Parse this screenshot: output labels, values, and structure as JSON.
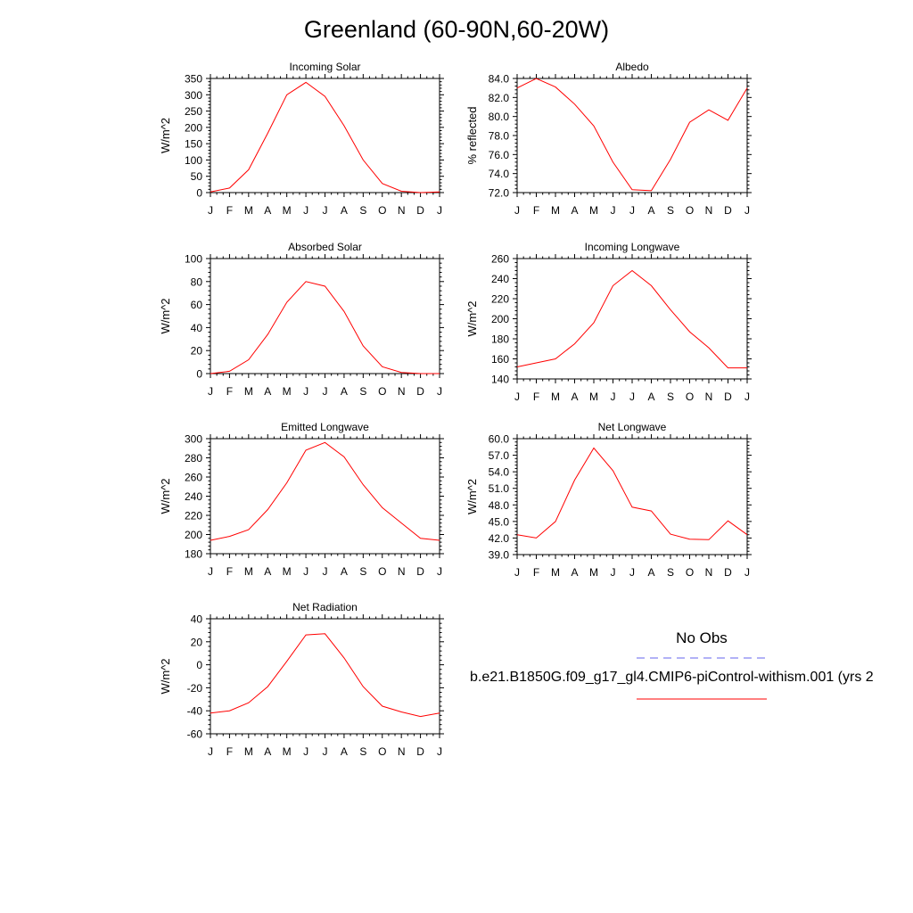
{
  "title": "Greenland (60-90N,60-20W)",
  "colors": {
    "model_line": "#ff0000",
    "obs_line": "#6666ee",
    "axis": "#000000"
  },
  "months": [
    "J",
    "F",
    "M",
    "A",
    "M",
    "J",
    "J",
    "A",
    "S",
    "O",
    "N",
    "D",
    "J"
  ],
  "legend": {
    "obs_label": "No Obs",
    "model_label": "b.e21.B1850G.f09_g17_gl4.CMIP6-piControl-withism.001 (yrs 2"
  },
  "chart_data": [
    {
      "type": "line",
      "title": "Incoming Solar",
      "ylabel": "W/m^2",
      "categories": [
        "J",
        "F",
        "M",
        "A",
        "M",
        "J",
        "J",
        "A",
        "S",
        "O",
        "N",
        "D",
        "J"
      ],
      "ylim": [
        0,
        350
      ],
      "yticks": [
        0,
        50,
        100,
        150,
        200,
        250,
        300,
        350
      ],
      "ytick_labels": [
        "0",
        "50",
        "100",
        "150",
        "200",
        "250",
        "300",
        "350"
      ],
      "series": [
        {
          "values": [
            2,
            14,
            70,
            182,
            300,
            338,
            295,
            205,
            100,
            28,
            4,
            0,
            2
          ]
        }
      ]
    },
    {
      "type": "line",
      "title": "Albedo",
      "ylabel": "% reflected",
      "categories": [
        "J",
        "F",
        "M",
        "A",
        "M",
        "J",
        "J",
        "A",
        "S",
        "O",
        "N",
        "D",
        "J"
      ],
      "ylim": [
        72,
        84
      ],
      "yticks": [
        72,
        74,
        76,
        78,
        80,
        82,
        84
      ],
      "ytick_labels": [
        "72.0",
        "74.0",
        "76.0",
        "78.0",
        "80.0",
        "82.0",
        "84.0"
      ],
      "series": [
        {
          "values": [
            83.0,
            84.0,
            83.1,
            81.3,
            79.0,
            75.2,
            72.3,
            72.2,
            75.5,
            79.4,
            80.7,
            79.6,
            83.0
          ]
        }
      ]
    },
    {
      "type": "line",
      "title": "Absorbed Solar",
      "ylabel": "W/m^2",
      "categories": [
        "J",
        "F",
        "M",
        "A",
        "M",
        "J",
        "J",
        "A",
        "S",
        "O",
        "N",
        "D",
        "J"
      ],
      "ylim": [
        0,
        100
      ],
      "yticks": [
        0,
        20,
        40,
        60,
        80,
        100
      ],
      "ytick_labels": [
        "0",
        "20",
        "40",
        "60",
        "80",
        "100"
      ],
      "series": [
        {
          "values": [
            0,
            2,
            12,
            34,
            62,
            80,
            76,
            54,
            24,
            6,
            1,
            0,
            0
          ]
        }
      ]
    },
    {
      "type": "line",
      "title": "Incoming Longwave",
      "ylabel": "W/m^2",
      "categories": [
        "J",
        "F",
        "M",
        "A",
        "M",
        "J",
        "J",
        "A",
        "S",
        "O",
        "N",
        "D",
        "J"
      ],
      "ylim": [
        140,
        260
      ],
      "yticks": [
        140,
        160,
        180,
        200,
        220,
        240,
        260
      ],
      "ytick_labels": [
        "140",
        "160",
        "180",
        "200",
        "220",
        "240",
        "260"
      ],
      "series": [
        {
          "values": [
            152,
            156,
            160,
            175,
            196,
            233,
            248,
            233,
            209,
            187,
            171,
            151,
            151
          ]
        }
      ]
    },
    {
      "type": "line",
      "title": "Emitted Longwave",
      "ylabel": "W/m^2",
      "categories": [
        "J",
        "F",
        "M",
        "A",
        "M",
        "J",
        "J",
        "A",
        "S",
        "O",
        "N",
        "D",
        "J"
      ],
      "ylim": [
        180,
        300
      ],
      "yticks": [
        180,
        200,
        220,
        240,
        260,
        280,
        300
      ],
      "ytick_labels": [
        "180",
        "200",
        "220",
        "240",
        "260",
        "280",
        "300"
      ],
      "series": [
        {
          "values": [
            194,
            198,
            205,
            226,
            254,
            288,
            296,
            281,
            252,
            228,
            212,
            196,
            194
          ]
        }
      ]
    },
    {
      "type": "line",
      "title": "Net Longwave",
      "ylabel": "W/m^2",
      "categories": [
        "J",
        "F",
        "M",
        "A",
        "M",
        "J",
        "J",
        "A",
        "S",
        "O",
        "N",
        "D",
        "J"
      ],
      "ylim": [
        39,
        60
      ],
      "yticks": [
        39,
        42,
        45,
        48,
        51,
        54,
        57,
        60
      ],
      "ytick_labels": [
        "39.0",
        "42.0",
        "45.0",
        "48.0",
        "51.0",
        "54.0",
        "57.0",
        "60.0"
      ],
      "series": [
        {
          "values": [
            42.6,
            42.0,
            45.0,
            52.5,
            58.3,
            54.2,
            47.6,
            46.9,
            42.7,
            41.8,
            41.7,
            45.1,
            42.6
          ]
        }
      ]
    },
    {
      "type": "line",
      "title": "Net Radiation",
      "ylabel": "W/m^2",
      "categories": [
        "J",
        "F",
        "M",
        "A",
        "M",
        "J",
        "J",
        "A",
        "S",
        "O",
        "N",
        "D",
        "J"
      ],
      "ylim": [
        -60,
        40
      ],
      "yticks": [
        -60,
        -40,
        -20,
        0,
        20,
        40
      ],
      "ytick_labels": [
        "-60",
        "-40",
        "-20",
        "0",
        "20",
        "40"
      ],
      "series": [
        {
          "values": [
            -42,
            -40,
            -33,
            -19,
            3,
            26,
            27,
            6,
            -19,
            -36,
            -41,
            -45,
            -42
          ]
        }
      ]
    }
  ]
}
